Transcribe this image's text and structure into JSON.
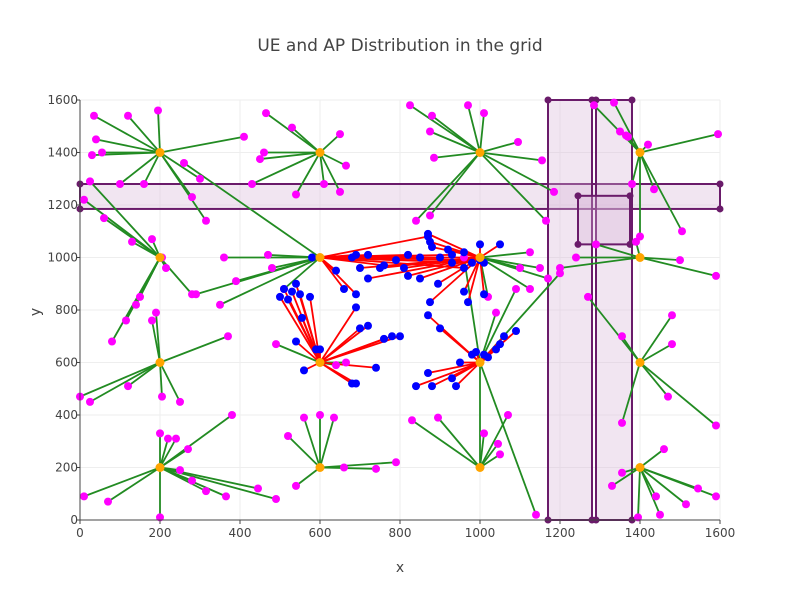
{
  "chart_data": {
    "type": "scatter",
    "title": "UE and AP Distribution in the grid",
    "xlabel": "x",
    "ylabel": "y",
    "xlim": [
      0,
      1600
    ],
    "ylim": [
      0,
      1600
    ],
    "xticks": [
      0,
      200,
      400,
      600,
      800,
      1000,
      1200,
      1400,
      1600
    ],
    "yticks": [
      0,
      200,
      400,
      600,
      800,
      1000,
      1200,
      1400,
      1600
    ],
    "xtick_labels": [
      "0",
      "200",
      "400",
      "600",
      "800",
      "1000",
      "1200",
      "1400",
      "1600"
    ],
    "ytick_labels": [
      "0",
      "200",
      "400",
      "600",
      "800",
      "1000",
      "1200",
      "1400",
      "1600"
    ],
    "grid": true,
    "legend": "none",
    "colors": {
      "ap": "#ffa500",
      "ue_green": "#ff00ff",
      "ue_red": "#0000ff",
      "green_link": "#228b22",
      "red_link": "#ff0000",
      "zone_edge": "#6a1b6a",
      "zone_fill": "#d8b4d8"
    },
    "zones": [
      {
        "x0": 0,
        "x1": 1600,
        "y0": 1185,
        "y1": 1280
      },
      {
        "x0": 1170,
        "x1": 1280,
        "y0": 0,
        "y1": 1600
      },
      {
        "x0": 1290,
        "x1": 1380,
        "y0": 0,
        "y1": 1600
      },
      {
        "x0": 1245,
        "x1": 1375,
        "y0": 1050,
        "y1": 1235
      }
    ],
    "aps": [
      [
        200,
        1400
      ],
      [
        600,
        1400
      ],
      [
        1000,
        1400
      ],
      [
        1400,
        1400
      ],
      [
        200,
        1000
      ],
      [
        600,
        1000
      ],
      [
        1000,
        1000
      ],
      [
        1400,
        1000
      ],
      [
        200,
        600
      ],
      [
        600,
        600
      ],
      [
        1000,
        600
      ],
      [
        1400,
        600
      ],
      [
        200,
        200
      ],
      [
        600,
        200
      ],
      [
        1000,
        200
      ],
      [
        1400,
        200
      ]
    ],
    "green_links": [
      {
        "ap": 0,
        "ues": [
          [
            35,
            1540
          ],
          [
            40,
            1450
          ],
          [
            30,
            1390
          ],
          [
            55,
            1400
          ],
          [
            120,
            1540
          ],
          [
            195,
            1560
          ],
          [
            100,
            1280
          ],
          [
            160,
            1280
          ],
          [
            280,
            1230
          ],
          [
            300,
            1300
          ],
          [
            315,
            1140
          ],
          [
            410,
            1460
          ]
        ]
      },
      {
        "ap": 1,
        "ues": [
          [
            465,
            1550
          ],
          [
            530,
            1495
          ],
          [
            460,
            1400
          ],
          [
            450,
            1375
          ],
          [
            650,
            1470
          ],
          [
            665,
            1350
          ],
          [
            610,
            1280
          ],
          [
            650,
            1250
          ],
          [
            540,
            1240
          ],
          [
            430,
            1280
          ]
        ]
      },
      {
        "ap": 2,
        "ues": [
          [
            825,
            1580
          ],
          [
            880,
            1540
          ],
          [
            875,
            1480
          ],
          [
            885,
            1380
          ],
          [
            970,
            1580
          ],
          [
            1010,
            1550
          ],
          [
            1095,
            1440
          ],
          [
            1155,
            1370
          ],
          [
            1185,
            1250
          ],
          [
            1165,
            1140
          ],
          [
            840,
            1140
          ],
          [
            875,
            1160
          ]
        ]
      },
      {
        "ap": 3,
        "ues": [
          [
            1285,
            1580
          ],
          [
            1335,
            1590
          ],
          [
            1350,
            1480
          ],
          [
            1365,
            1465
          ],
          [
            1370,
            1460
          ],
          [
            1380,
            1280
          ],
          [
            1400,
            1080
          ],
          [
            1420,
            1430
          ],
          [
            1435,
            1260
          ],
          [
            1505,
            1100
          ],
          [
            1595,
            1470
          ]
        ]
      },
      {
        "ap": 4,
        "ues": [
          [
            25,
            1290
          ],
          [
            10,
            1220
          ],
          [
            60,
            1150
          ],
          [
            130,
            1060
          ],
          [
            180,
            1070
          ],
          [
            205,
            1000
          ],
          [
            215,
            960
          ],
          [
            280,
            860
          ],
          [
            150,
            850
          ],
          [
            140,
            820
          ],
          [
            115,
            760
          ],
          [
            80,
            680
          ]
        ]
      },
      {
        "ap": 5,
        "ues": [
          [
            260,
            1360
          ],
          [
            360,
            1000
          ],
          [
            290,
            860
          ],
          [
            350,
            820
          ],
          [
            390,
            910
          ],
          [
            480,
            960
          ],
          [
            470,
            1010
          ],
          [
            510,
            880
          ]
        ]
      },
      {
        "ap": 6,
        "ues": [
          [
            1100,
            960
          ],
          [
            1125,
            1020
          ],
          [
            1125,
            880
          ],
          [
            1170,
            920
          ],
          [
            1150,
            960
          ],
          [
            1020,
            850
          ]
        ]
      },
      {
        "ap": 7,
        "ues": [
          [
            1200,
            960
          ],
          [
            1240,
            1000
          ],
          [
            1290,
            1050
          ],
          [
            1390,
            1060
          ],
          [
            1590,
            930
          ],
          [
            1500,
            990
          ]
        ]
      },
      {
        "ap": 8,
        "ues": [
          [
            190,
            790
          ],
          [
            180,
            760
          ],
          [
            120,
            510
          ],
          [
            0,
            470
          ],
          [
            25,
            450
          ],
          [
            205,
            470
          ],
          [
            250,
            450
          ],
          [
            370,
            700
          ]
        ]
      },
      {
        "ap": 9,
        "ues": [
          [
            490,
            670
          ],
          [
            665,
            600
          ],
          [
            640,
            590
          ]
        ]
      },
      {
        "ap": 10,
        "ues": [
          [
            1040,
            790
          ],
          [
            1200,
            940
          ],
          [
            1090,
            880
          ],
          [
            960,
            1000
          ]
        ]
      },
      {
        "ap": 11,
        "ues": [
          [
            1270,
            850
          ],
          [
            1355,
            700
          ],
          [
            1355,
            370
          ],
          [
            1480,
            780
          ],
          [
            1480,
            670
          ],
          [
            1470,
            470
          ],
          [
            1590,
            360
          ]
        ]
      },
      {
        "ap": 12,
        "ues": [
          [
            10,
            90
          ],
          [
            70,
            70
          ],
          [
            200,
            10
          ],
          [
            200,
            330
          ],
          [
            220,
            310
          ],
          [
            240,
            310
          ],
          [
            270,
            270
          ],
          [
            250,
            190
          ],
          [
            280,
            150
          ],
          [
            315,
            110
          ],
          [
            365,
            90
          ],
          [
            380,
            400
          ],
          [
            445,
            120
          ],
          [
            490,
            80
          ]
        ]
      },
      {
        "ap": 13,
        "ues": [
          [
            520,
            320
          ],
          [
            540,
            130
          ],
          [
            560,
            390
          ],
          [
            600,
            400
          ],
          [
            635,
            390
          ],
          [
            660,
            200
          ],
          [
            740,
            195
          ],
          [
            790,
            220
          ]
        ]
      },
      {
        "ap": 14,
        "ues": [
          [
            830,
            380
          ],
          [
            895,
            390
          ],
          [
            1010,
            330
          ],
          [
            1045,
            290
          ],
          [
            1050,
            250
          ],
          [
            1070,
            400
          ],
          [
            1000,
            600
          ]
        ]
      },
      {
        "ap": 15,
        "ues": [
          [
            1330,
            130
          ],
          [
            1355,
            180
          ],
          [
            1395,
            10
          ],
          [
            1440,
            90
          ],
          [
            1450,
            20
          ],
          [
            1460,
            270
          ],
          [
            1515,
            60
          ],
          [
            1545,
            120
          ],
          [
            1590,
            90
          ]
        ]
      },
      {
        "ap": 2,
        "ues": [
          [
            1000,
            1400
          ]
        ]
      },
      {
        "ap": 10,
        "ues": [
          [
            1140,
            20
          ],
          [
            1000,
            600
          ]
        ]
      },
      {
        "ap": 12,
        "ues": [
          [
            200,
            200
          ]
        ]
      }
    ],
    "red_links": [
      {
        "ap": 5,
        "ues": [
          [
            580,
            1000
          ],
          [
            640,
            950
          ],
          [
            690,
            1010
          ],
          [
            720,
            1010
          ],
          [
            760,
            970
          ],
          [
            790,
            990
          ],
          [
            820,
            1010
          ],
          [
            850,
            1000
          ],
          [
            870,
            1080
          ],
          [
            900,
            1000
          ],
          [
            930,
            1010
          ],
          [
            960,
            960
          ],
          [
            980,
            980
          ],
          [
            1000,
            990
          ],
          [
            660,
            880
          ],
          [
            690,
            860
          ]
        ]
      },
      {
        "ap": 6,
        "ues": [
          [
            870,
            1090
          ],
          [
            875,
            1060
          ],
          [
            880,
            1040
          ],
          [
            920,
            1030
          ],
          [
            960,
            1020
          ],
          [
            1000,
            1000
          ],
          [
            1010,
            980
          ],
          [
            1000,
            1050
          ],
          [
            1050,
            1050
          ],
          [
            930,
            980
          ],
          [
            895,
            900
          ],
          [
            875,
            830
          ],
          [
            960,
            870
          ],
          [
            970,
            830
          ],
          [
            1010,
            860
          ],
          [
            680,
            1000
          ],
          [
            700,
            960
          ],
          [
            720,
            920
          ],
          [
            750,
            960
          ],
          [
            810,
            960
          ]
        ]
      },
      {
        "ap": 9,
        "ues": [
          [
            500,
            850
          ],
          [
            510,
            880
          ],
          [
            520,
            840
          ],
          [
            530,
            870
          ],
          [
            540,
            900
          ],
          [
            550,
            860
          ],
          [
            555,
            770
          ],
          [
            575,
            850
          ],
          [
            590,
            650
          ],
          [
            600,
            650
          ],
          [
            560,
            570
          ],
          [
            540,
            680
          ],
          [
            690,
            810
          ],
          [
            700,
            730
          ],
          [
            720,
            740
          ],
          [
            680,
            520
          ],
          [
            690,
            520
          ],
          [
            740,
            580
          ],
          [
            760,
            690
          ],
          [
            780,
            700
          ],
          [
            800,
            700
          ]
        ]
      },
      {
        "ap": 10,
        "ues": [
          [
            840,
            510
          ],
          [
            870,
            560
          ],
          [
            880,
            510
          ],
          [
            930,
            540
          ],
          [
            940,
            510
          ],
          [
            950,
            600
          ],
          [
            980,
            630
          ],
          [
            990,
            640
          ],
          [
            1010,
            630
          ],
          [
            1020,
            620
          ],
          [
            1040,
            650
          ],
          [
            1050,
            670
          ],
          [
            1060,
            700
          ],
          [
            1090,
            720
          ]
        ]
      },
      {
        "ap": 6,
        "ues": [
          [
            820,
            930
          ],
          [
            850,
            920
          ]
        ]
      },
      {
        "ap": 10,
        "ues": [
          [
            870,
            780
          ],
          [
            900,
            730
          ]
        ]
      }
    ]
  }
}
